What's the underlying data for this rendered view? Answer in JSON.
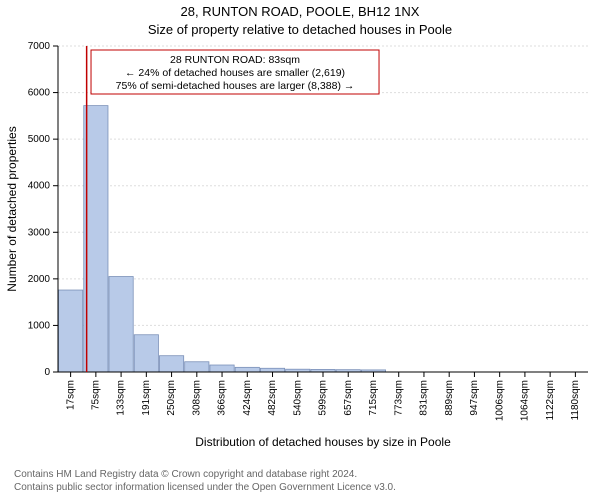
{
  "title_main": "28, RUNTON ROAD, POOLE, BH12 1NX",
  "title_sub": "Size of property relative to detached houses in Poole",
  "xlabel": "Distribution of detached houses by size in Poole",
  "ylabel": "Number of detached properties",
  "footer_line1": "Contains HM Land Registry data © Crown copyright and database right 2024.",
  "footer_line2": "Contains public sector information licensed under the Open Government Licence v3.0.",
  "annotation": {
    "line1": "28 RUNTON ROAD: 83sqm",
    "line2": "← 24% of detached houses are smaller (2,619)",
    "line3": "75% of semi-detached houses are larger (8,388) →"
  },
  "chart": {
    "type": "histogram",
    "ylim": [
      0,
      7000
    ],
    "ytick_step": 1000,
    "categories": [
      "17sqm",
      "75sqm",
      "133sqm",
      "191sqm",
      "250sqm",
      "308sqm",
      "366sqm",
      "424sqm",
      "482sqm",
      "540sqm",
      "599sqm",
      "657sqm",
      "715sqm",
      "773sqm",
      "831sqm",
      "889sqm",
      "947sqm",
      "1006sqm",
      "1064sqm",
      "1122sqm",
      "1180sqm"
    ],
    "values": [
      1760,
      5720,
      2050,
      800,
      350,
      220,
      150,
      100,
      80,
      60,
      55,
      50,
      45,
      0,
      0,
      0,
      0,
      0,
      0,
      0,
      0
    ],
    "bar_color": "#b8cae8",
    "bar_border_color": "#7a90b8",
    "background_color": "#ffffff",
    "grid_color": "#dddddd",
    "marker_value_sqm": 83,
    "marker_color": "#c00000",
    "annotation_border_color": "#c00000",
    "annotation_fill": "#ffffff",
    "axis_color": "#000000",
    "title_fontsize": 13,
    "label_fontsize": 12,
    "tick_fontsize": 10
  }
}
